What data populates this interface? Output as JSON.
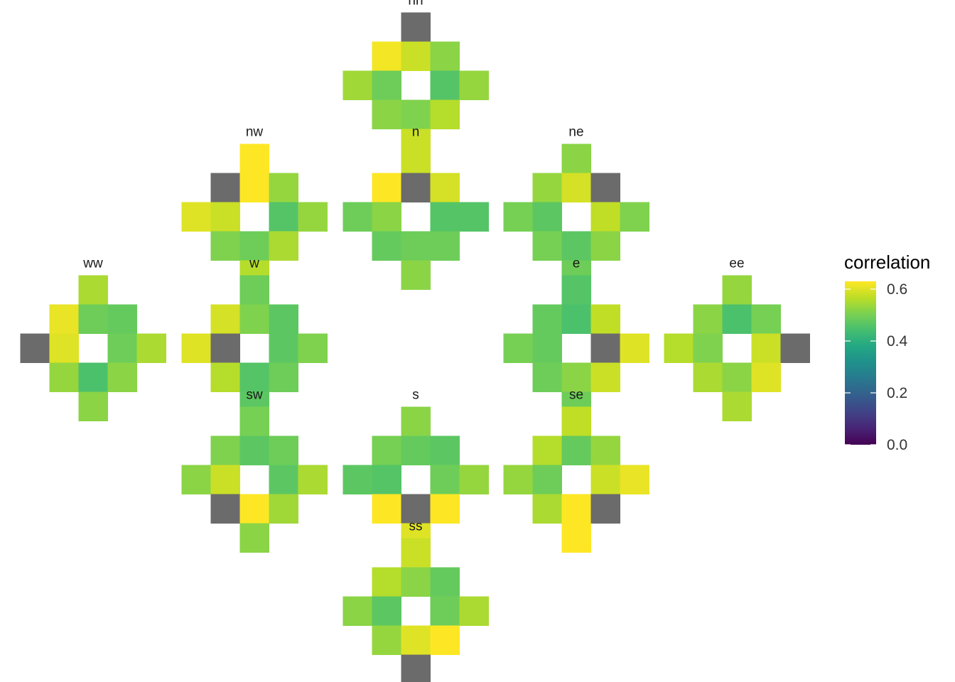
{
  "chart_data": {
    "type": "heatmap",
    "na_color": "#6b6b6b",
    "legend": {
      "title": "correlation",
      "position": "right",
      "ticks": [
        0.0,
        0.2,
        0.4,
        0.6
      ],
      "tick_labels": [
        "0.0",
        "0.2",
        "0.4",
        "0.6"
      ],
      "range": [
        0.0,
        0.63
      ]
    },
    "cell_order_note": "rows r0..r4 top-to-bottom; r0=[0,2], r1=[-1,0,1], r2=[-2,-1,1,2], r3=[-1,0,1], r4=[0]",
    "panels": [
      {
        "name": "nn",
        "title": "nn",
        "rows": [
          [
            null
          ],
          [
            0.62,
            0.58,
            0.52
          ],
          [
            0.54,
            0.49,
            0.46,
            0.53
          ],
          [
            0.52,
            0.51,
            0.56
          ],
          [
            0.58
          ]
        ]
      },
      {
        "name": "nw",
        "title": "nw",
        "rows": [
          [
            0.63
          ],
          [
            null,
            0.63,
            0.53
          ],
          [
            0.6,
            0.58,
            0.46,
            0.53
          ],
          [
            0.51,
            0.49,
            0.55
          ],
          [
            0.56
          ]
        ]
      },
      {
        "name": "n",
        "title": "n",
        "rows": [
          [
            0.58
          ],
          [
            0.63,
            null,
            0.59
          ],
          [
            0.49,
            0.52,
            0.46,
            0.46
          ],
          [
            0.48,
            0.49,
            0.49
          ],
          [
            0.52
          ]
        ]
      },
      {
        "name": "ne",
        "title": "ne",
        "rows": [
          [
            0.52
          ],
          [
            0.53,
            0.59,
            null
          ],
          [
            0.5,
            0.47,
            0.57,
            0.51
          ],
          [
            0.5,
            0.47,
            0.52
          ],
          [
            0.49
          ]
        ]
      },
      {
        "name": "ww",
        "title": "ww",
        "rows": [
          [
            0.55
          ],
          [
            0.61,
            0.49,
            0.48
          ],
          [
            null,
            0.6,
            0.49,
            0.55
          ],
          [
            0.53,
            0.45,
            0.52
          ],
          [
            0.52
          ]
        ]
      },
      {
        "name": "w",
        "title": "w",
        "rows": [
          [
            0.49
          ],
          [
            0.59,
            0.51,
            0.47
          ],
          [
            0.6,
            null,
            0.47,
            0.51
          ],
          [
            0.56,
            0.46,
            0.49
          ],
          [
            0.47
          ]
        ]
      },
      {
        "name": "e",
        "title": "e",
        "rows": [
          [
            0.46
          ],
          [
            0.48,
            0.45,
            0.57
          ],
          [
            0.5,
            0.48,
            null,
            0.6
          ],
          [
            0.49,
            0.52,
            0.58
          ],
          [
            0.49
          ]
        ]
      },
      {
        "name": "ee",
        "title": "ee",
        "rows": [
          [
            0.53
          ],
          [
            0.52,
            0.45,
            0.5
          ],
          [
            0.56,
            0.51,
            0.58,
            null
          ],
          [
            0.55,
            0.52,
            0.6
          ],
          [
            0.55
          ]
        ]
      },
      {
        "name": "sw",
        "title": "sw",
        "rows": [
          [
            0.5
          ],
          [
            0.51,
            0.47,
            0.49
          ],
          [
            0.52,
            0.58,
            0.47,
            0.55
          ],
          [
            null,
            0.63,
            0.54
          ],
          [
            0.52
          ]
        ]
      },
      {
        "name": "s",
        "title": "s",
        "rows": [
          [
            0.52
          ],
          [
            0.5,
            0.48,
            0.47
          ],
          [
            0.47,
            0.46,
            0.49,
            0.53
          ],
          [
            0.63,
            null,
            0.63
          ],
          [
            0.6
          ]
        ]
      },
      {
        "name": "se",
        "title": "se",
        "rows": [
          [
            0.57
          ],
          [
            0.56,
            0.48,
            0.53
          ],
          [
            0.53,
            0.49,
            0.58,
            0.61
          ],
          [
            0.55,
            0.63,
            null
          ],
          [
            0.63
          ]
        ]
      },
      {
        "name": "ss",
        "title": "ss",
        "rows": [
          [
            0.58
          ],
          [
            0.56,
            0.52,
            0.48
          ],
          [
            0.52,
            0.47,
            0.49,
            0.55
          ],
          [
            0.53,
            0.6,
            0.63
          ],
          [
            null
          ]
        ]
      }
    ]
  }
}
